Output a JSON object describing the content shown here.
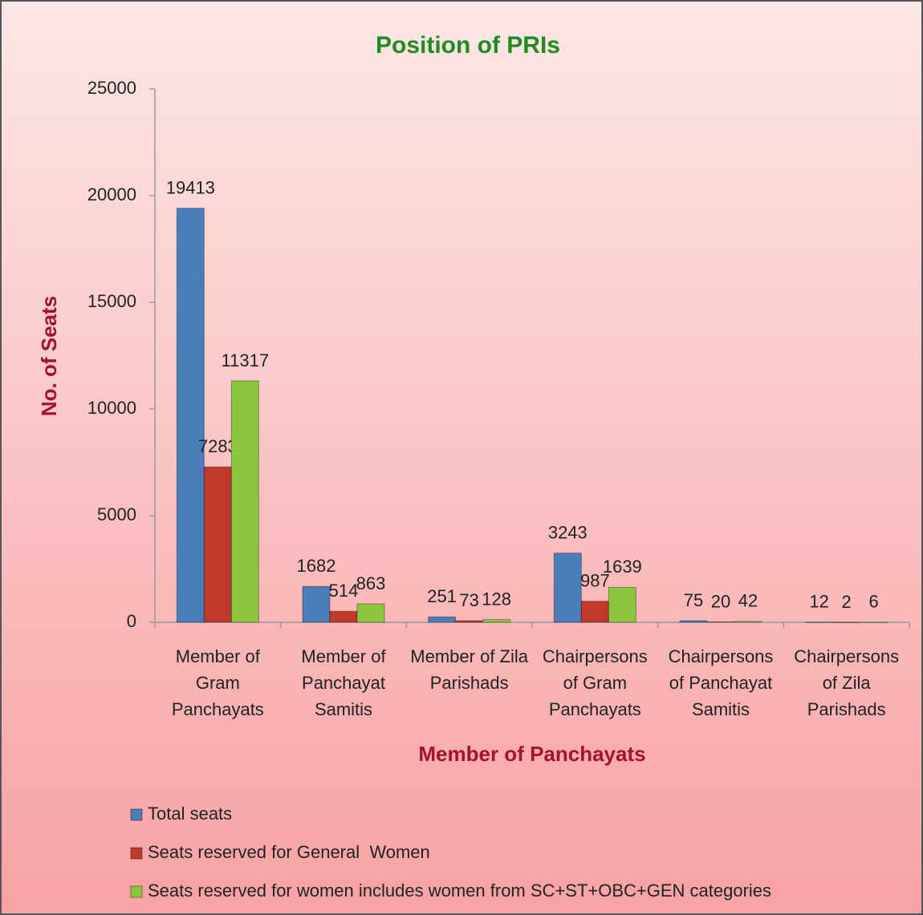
{
  "chart_data": {
    "type": "bar",
    "title": "Position of PRIs",
    "x_label": "Member of Panchayats",
    "y_label": "No. of Seats",
    "categories": [
      "Member of Gram Panchayats",
      "Member of Panchayat Samitis",
      "Member of Zila Parishads",
      "Chairpersons of Gram Panchayats",
      "Chairpersons of Panchayat Samitis",
      "Chairpersons of Zila Parishads"
    ],
    "series": [
      {
        "name": "Total seats",
        "color": "#4a7ebb",
        "values": [
          19413,
          1682,
          251,
          3243,
          75,
          12
        ]
      },
      {
        "name": "Seats reserved for General  Women",
        "color": "#c0392b",
        "values": [
          7283,
          514,
          73,
          987,
          20,
          2
        ]
      },
      {
        "name": "Seats reserved for women includes women from SC+ST+OBC+GEN categories",
        "color": "#8cc63f",
        "values": [
          11317,
          863,
          128,
          1639,
          42,
          6
        ]
      }
    ],
    "ylim": [
      0,
      25000
    ],
    "yticks": [
      0,
      5000,
      10000,
      15000,
      20000,
      25000
    ],
    "legend": "bottom"
  }
}
